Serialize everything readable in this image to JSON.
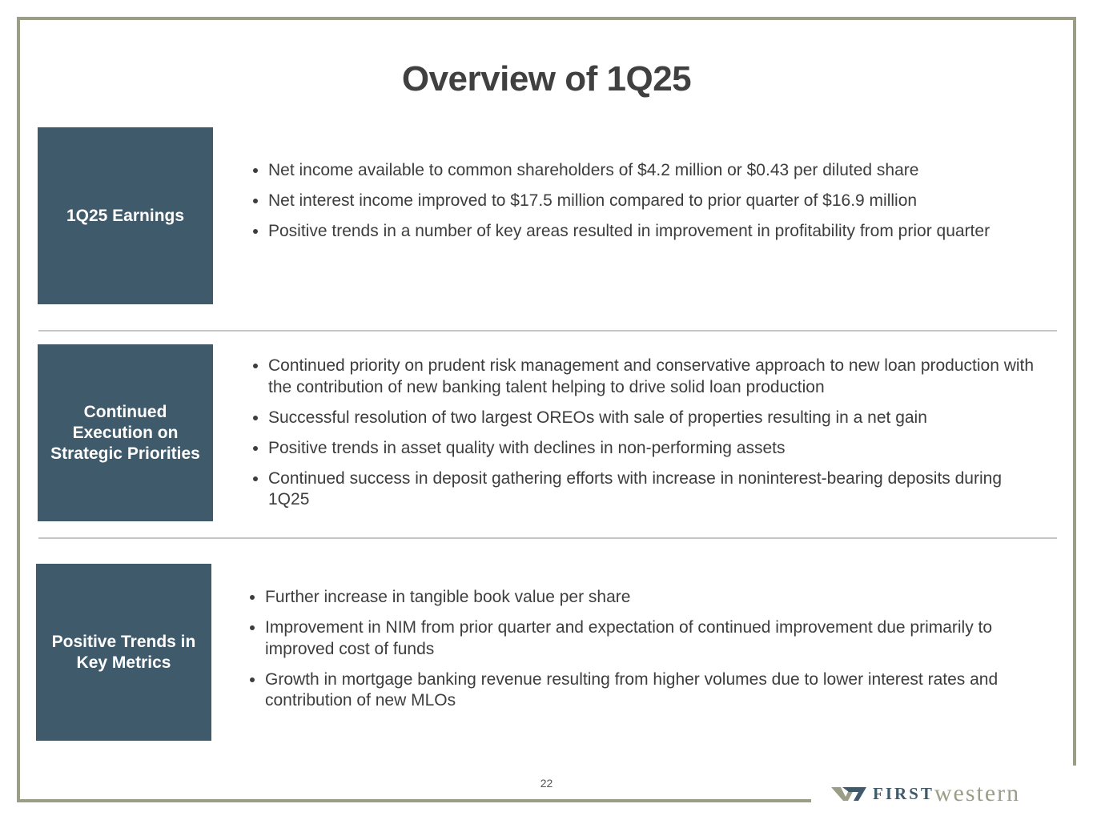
{
  "title": "Overview of 1Q25",
  "sections": [
    {
      "heading": "1Q25 Earnings",
      "bullets": [
        "Net income available to common shareholders of $4.2 million or $0.43 per diluted share",
        "Net interest income improved to $17.5 million compared to prior quarter of $16.9 million",
        "Positive trends in a number of key areas resulted in improvement in profitability from prior quarter"
      ]
    },
    {
      "heading": "Continued Execution on Strategic Priorities",
      "bullets": [
        "Continued priority on prudent risk management and conservative approach to new loan production with the contribution of new banking talent helping to drive solid loan production",
        "Successful resolution of two largest OREOs with sale of properties resulting in a net gain",
        "Positive trends in asset quality with declines in non-performing assets",
        "Continued success in deposit gathering efforts with increase in noninterest-bearing deposits during 1Q25"
      ]
    },
    {
      "heading": "Positive Trends in Key Metrics",
      "bullets": [
        "Further increase in tangible book value per share",
        "Improvement in NIM from prior quarter and expectation of continued improvement due primarily to improved cost of funds",
        "Growth in mortgage banking revenue resulting from higher volumes due to lower interest rates and contribution of new MLOs"
      ]
    }
  ],
  "page_number": "22",
  "logo": {
    "first": "FIRST",
    "western": "western"
  },
  "colors": {
    "box": "#3f5a6b",
    "border": "#9b9d86"
  }
}
